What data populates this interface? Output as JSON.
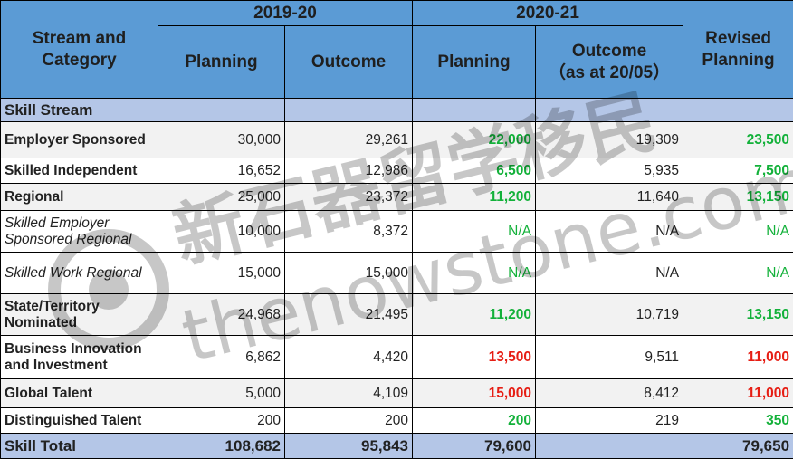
{
  "header": {
    "stream_category": "Stream and Category",
    "year1": "2019-20",
    "year2": "2020-21",
    "revised": "Revised Planning",
    "planning": "Planning",
    "outcome": "Outcome",
    "outcome_2020_line1": "Outcome",
    "outcome_2020_line2": "（as at 20/05）"
  },
  "section_title": "Skill Stream",
  "rows": [
    {
      "label": "Employer Sponsored",
      "p1920": "30,000",
      "o1920": "29,261",
      "p2021": "22,000",
      "o2021": "19,309",
      "rev": "23,500"
    },
    {
      "label": "Skilled Independent",
      "p1920": "16,652",
      "o1920": "12,986",
      "p2021": "6,500",
      "o2021": "5,935",
      "rev": "7,500"
    },
    {
      "label": "Regional",
      "p1920": "25,000",
      "o1920": "23,372",
      "p2021": "11,200",
      "o2021": "11,640",
      "rev": "13,150"
    },
    {
      "label": "Skilled Employer Sponsored Regional",
      "p1920": "10,000",
      "o1920": "8,372",
      "p2021": "N/A",
      "o2021": "N/A",
      "rev": "N/A"
    },
    {
      "label": "Skilled Work Regional",
      "p1920": "15,000",
      "o1920": "15,000",
      "p2021": "N/A",
      "o2021": "N/A",
      "rev": "N/A"
    },
    {
      "label": "State/Territory Nominated",
      "p1920": "24,968",
      "o1920": "21,495",
      "p2021": "11,200",
      "o2021": "10,719",
      "rev": "13,150"
    },
    {
      "label": "Business Innovation and Investment",
      "p1920": "6,862",
      "o1920": "4,420",
      "p2021": "13,500",
      "o2021": "9,511",
      "rev": "11,000"
    },
    {
      "label": "Global Talent",
      "p1920": "5,000",
      "o1920": "4,109",
      "p2021": "15,000",
      "o2021": "8,412",
      "rev": "11,000"
    },
    {
      "label": "Distinguished Talent",
      "p1920": "200",
      "o1920": "200",
      "p2021": "200",
      "o2021": "219",
      "rev": "350"
    }
  ],
  "total": {
    "label": "Skill Total",
    "p1920": "108,682",
    "o1920": "95,843",
    "p2021": "79,600",
    "o2021": "",
    "rev": "79,650"
  },
  "watermark": {
    "cn": "新石器留学移民",
    "en": "thenowstone.com"
  },
  "colors": {
    "header_blue": "#5b9bd5",
    "section_blue": "#b4c6e7",
    "green": "#13b13a",
    "red": "#e61e14"
  }
}
